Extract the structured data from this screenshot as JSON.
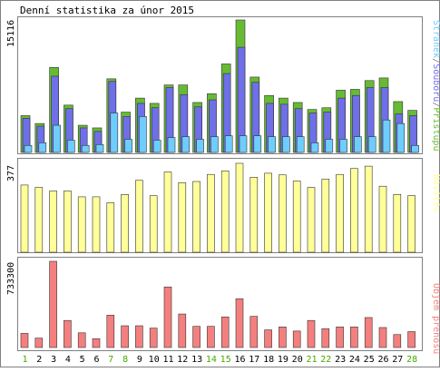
{
  "title": "Denní statistika za únor 2015",
  "colors": {
    "background": "#ffffff",
    "border": "#808080",
    "panel_bg": "#ffffff",
    "access": "#66bb33",
    "files": "#6f6fe8",
    "pages": "#6ecdfc",
    "visits": "#ffff99",
    "bytes": "#f47f7f",
    "weekday_label": "#000000",
    "weekend_label": "#44aa00"
  },
  "chart_data": [
    {
      "type": "bar",
      "name": "requests",
      "categories": [
        "1",
        "2",
        "3",
        "4",
        "5",
        "6",
        "7",
        "8",
        "9",
        "10",
        "11",
        "12",
        "13",
        "14",
        "15",
        "16",
        "17",
        "18",
        "19",
        "20",
        "21",
        "22",
        "23",
        "24",
        "25",
        "26",
        "27",
        "28"
      ],
      "ymax_label": "15116",
      "ylim": [
        0,
        15116
      ],
      "legend_text": [
        {
          "text": "Stránek",
          "color_key": "pages"
        },
        {
          "text": "/",
          "color_key": "border"
        },
        {
          "text": "Souborů",
          "color_key": "files"
        },
        {
          "text": "/",
          "color_key": "border"
        },
        {
          "text": "Přístupů",
          "color_key": "access"
        }
      ],
      "series": [
        {
          "name": "Přístupů",
          "color_key": "access",
          "values": [
            4200,
            3300,
            9700,
            5400,
            3100,
            2800,
            8400,
            4600,
            6200,
            5600,
            7700,
            7700,
            5700,
            6700,
            10100,
            15116,
            8600,
            6500,
            6200,
            5700,
            4900,
            5100,
            7100,
            7200,
            8200,
            8500,
            5800,
            4800
          ]
        },
        {
          "name": "Souborů",
          "color_key": "files",
          "values": [
            3900,
            3000,
            8700,
            5000,
            2800,
            2400,
            8100,
            4100,
            5600,
            5100,
            7400,
            6600,
            5200,
            6000,
            9000,
            12000,
            8000,
            5600,
            5500,
            5000,
            4500,
            4600,
            6200,
            6500,
            7400,
            7400,
            4400,
            4200
          ]
        },
        {
          "name": "Stránek",
          "color_key": "pages",
          "values": [
            800,
            1100,
            3100,
            1400,
            800,
            900,
            4500,
            1500,
            4100,
            1400,
            1700,
            1800,
            1500,
            1800,
            1900,
            1900,
            1900,
            1800,
            1800,
            1800,
            1100,
            1500,
            1500,
            1800,
            1800,
            3700,
            3300,
            800
          ]
        }
      ]
    },
    {
      "type": "bar",
      "name": "visits",
      "categories": [
        "1",
        "2",
        "3",
        "4",
        "5",
        "6",
        "7",
        "8",
        "9",
        "10",
        "11",
        "12",
        "13",
        "14",
        "15",
        "16",
        "17",
        "18",
        "19",
        "20",
        "21",
        "22",
        "23",
        "24",
        "25",
        "26",
        "27",
        "28"
      ],
      "ymax_label": "377",
      "ylim": [
        0,
        377
      ],
      "legend_text": [
        {
          "text": "Návštěv",
          "color_key": "visits"
        }
      ],
      "series": [
        {
          "name": "Návštěv",
          "color_key": "visits",
          "values": [
            285,
            275,
            260,
            260,
            235,
            235,
            210,
            245,
            305,
            240,
            340,
            295,
            300,
            330,
            345,
            377,
            318,
            335,
            328,
            302,
            275,
            310,
            330,
            355,
            365,
            280,
            245,
            240
          ]
        }
      ]
    },
    {
      "type": "bar",
      "name": "bytes",
      "categories": [
        "1",
        "2",
        "3",
        "4",
        "5",
        "6",
        "7",
        "8",
        "9",
        "10",
        "11",
        "12",
        "13",
        "14",
        "15",
        "16",
        "17",
        "18",
        "19",
        "20",
        "21",
        "22",
        "23",
        "24",
        "25",
        "26",
        "27",
        "28"
      ],
      "ymax_label": "733300",
      "ylim": [
        0,
        733300
      ],
      "legend_text": [
        {
          "text": "Objem přenosu",
          "color_key": "bytes"
        }
      ],
      "series": [
        {
          "name": "Objem přenosu",
          "color_key": "bytes",
          "values": [
            120000,
            80000,
            733300,
            230000,
            125000,
            75000,
            275000,
            185000,
            185000,
            165000,
            515000,
            285000,
            180000,
            180000,
            260000,
            415000,
            265000,
            150000,
            175000,
            140000,
            230000,
            160000,
            175000,
            175000,
            255000,
            170000,
            110000,
            135000
          ]
        }
      ]
    }
  ],
  "weekend_days": [
    "1",
    "7",
    "8",
    "14",
    "15",
    "21",
    "22",
    "28"
  ]
}
